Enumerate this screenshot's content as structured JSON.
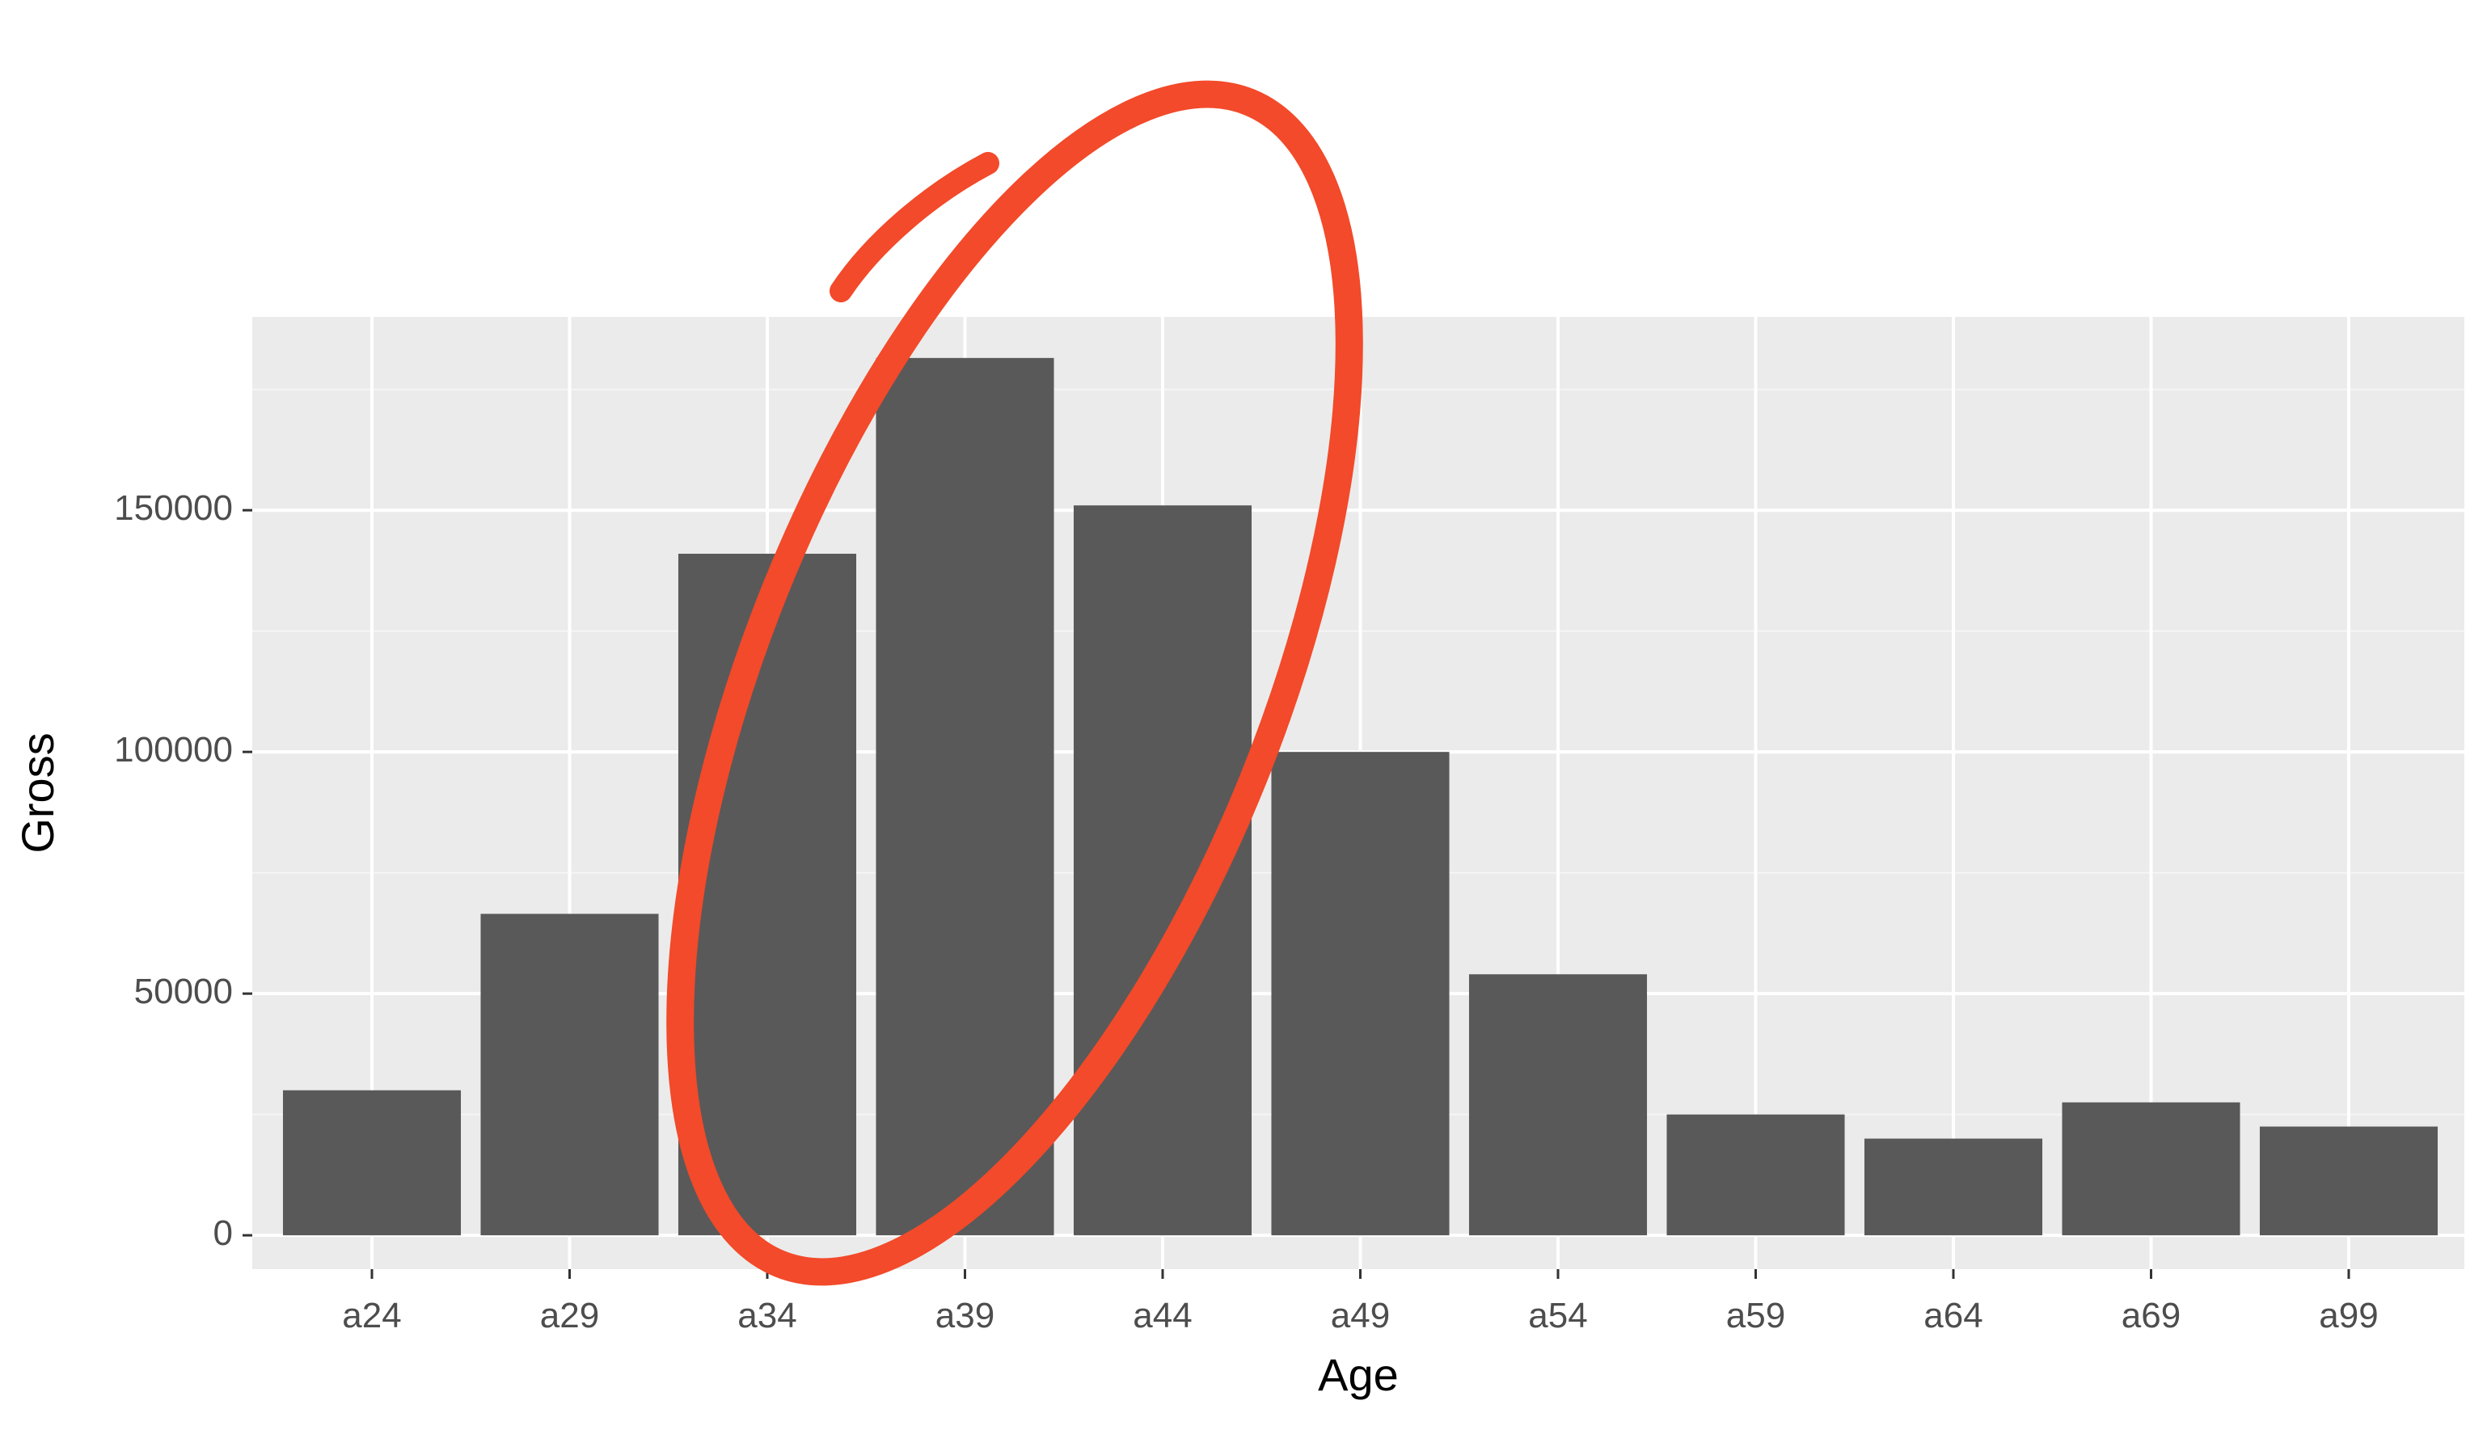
{
  "colors": {
    "panel_background": "#ebebeb",
    "grid_major": "#ffffff",
    "grid_minor": "#f5f5f5",
    "bar_fill": "#595959",
    "tick_text": "#4d4d4d",
    "tick_mark": "#333333",
    "annotation_stroke": "#f24a2a"
  },
  "annotation": {
    "shape": "hand-drawn ellipse",
    "encloses": [
      "a34",
      "a39",
      "a44"
    ]
  },
  "chart_data": {
    "type": "bar",
    "title": "",
    "xlabel": "Age",
    "ylabel": "Gross",
    "categories": [
      "a24",
      "a29",
      "a34",
      "a39",
      "a44",
      "a49",
      "a54",
      "a59",
      "a64",
      "a69",
      "a99"
    ],
    "values": [
      30000,
      66500,
      141000,
      181500,
      151000,
      100000,
      54000,
      25000,
      20000,
      27500,
      22500
    ],
    "ylim": [
      -7000,
      190000
    ],
    "yticks": [
      0,
      50000,
      100000,
      150000
    ],
    "ytick_labels": [
      "0",
      "50000",
      "100000",
      "150000"
    ],
    "grid": true,
    "legend": "none"
  }
}
